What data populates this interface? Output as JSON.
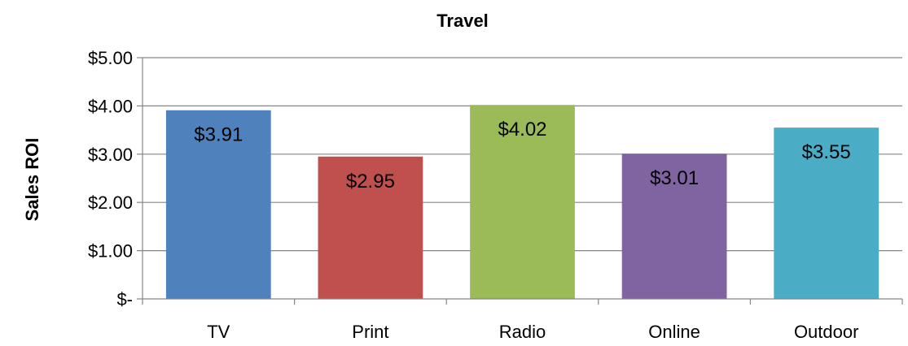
{
  "chart_data": {
    "type": "bar",
    "title": "Travel",
    "ylabel": "Sales ROI",
    "xlabel": "",
    "categories": [
      "TV",
      "Print",
      "Radio",
      "Online",
      "Outdoor"
    ],
    "values": [
      3.91,
      2.95,
      4.02,
      3.01,
      3.55
    ],
    "data_labels": [
      "$3.91",
      "$2.95",
      "$4.02",
      "$3.01",
      "$3.55"
    ],
    "colors": [
      "#4F81BD",
      "#C0504D",
      "#9BBB59",
      "#8064A2",
      "#4BACC6"
    ],
    "ylim": [
      0,
      5
    ],
    "yticks": [
      0,
      1,
      2,
      3,
      4,
      5
    ],
    "ytick_labels": [
      "$-",
      "$1.00",
      "$2.00",
      "$3.00",
      "$4.00",
      "$5.00"
    ],
    "grid": true,
    "legend": "none"
  }
}
